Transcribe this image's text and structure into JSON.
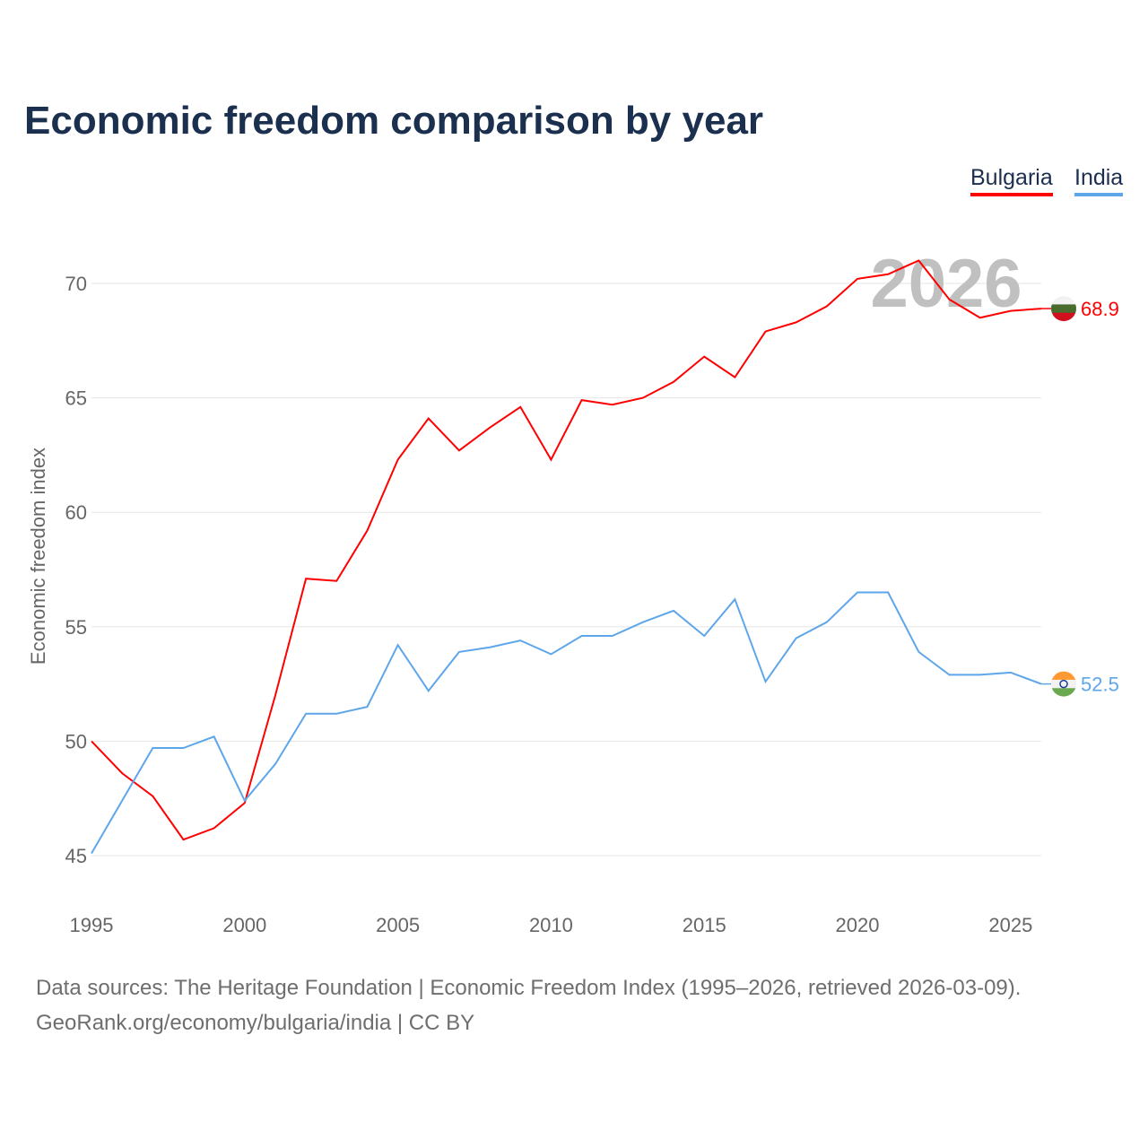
{
  "title": "Economic freedom comparison by year",
  "legend": [
    "Bulgaria",
    "India"
  ],
  "watermark_year": "2026",
  "sources": {
    "line1": "Data sources: The Heritage Foundation | Economic Freedom Index (1995–2026, retrieved 2026-03-09).",
    "line2": "GeoRank.org/economy/bulgaria/india | CC BY"
  },
  "chart_data": {
    "type": "line",
    "title": "Economic freedom comparison by year",
    "xlabel": "",
    "ylabel": "Economic freedom index",
    "xlim": [
      1995,
      2026
    ],
    "ylim": [
      45,
      70
    ],
    "yticks": [
      45,
      50,
      55,
      60,
      65,
      70
    ],
    "xticks": [
      1995,
      2000,
      2005,
      2010,
      2015,
      2020,
      2025
    ],
    "grid": true,
    "legend_position": "top-right",
    "x": [
      1995,
      1996,
      1997,
      1998,
      1999,
      2000,
      2001,
      2002,
      2003,
      2004,
      2005,
      2006,
      2007,
      2008,
      2009,
      2010,
      2011,
      2012,
      2013,
      2014,
      2015,
      2016,
      2017,
      2018,
      2019,
      2020,
      2021,
      2022,
      2023,
      2024,
      2025,
      2026
    ],
    "series": [
      {
        "name": "Bulgaria",
        "color": "#ff0000",
        "end_label": "68.9",
        "values": [
          50.0,
          48.6,
          47.6,
          45.7,
          46.2,
          47.3,
          52.0,
          57.1,
          57.0,
          59.2,
          62.3,
          64.1,
          62.7,
          63.7,
          64.6,
          62.3,
          64.9,
          64.7,
          65.0,
          65.7,
          66.8,
          65.9,
          67.9,
          68.3,
          69.0,
          70.2,
          70.4,
          71.0,
          69.3,
          68.5,
          68.8,
          68.9
        ]
      },
      {
        "name": "India",
        "color": "#5ea6ea",
        "end_label": "52.5",
        "values": [
          45.1,
          47.4,
          49.7,
          49.7,
          50.2,
          47.4,
          49.0,
          51.2,
          51.2,
          51.5,
          54.2,
          52.2,
          53.9,
          54.1,
          54.4,
          53.8,
          54.6,
          54.6,
          55.2,
          55.7,
          54.6,
          56.2,
          52.6,
          54.5,
          55.2,
          56.5,
          56.5,
          53.9,
          52.9,
          52.9,
          53.0,
          52.5
        ]
      }
    ]
  }
}
